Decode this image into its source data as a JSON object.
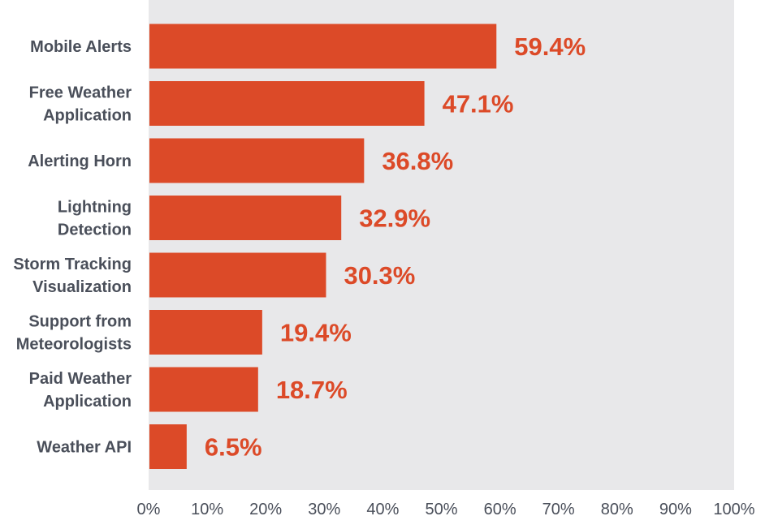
{
  "chart_data": {
    "type": "bar",
    "orientation": "horizontal",
    "categories": [
      [
        "Mobile Alerts"
      ],
      [
        "Free Weather",
        "Application"
      ],
      [
        "Alerting Horn"
      ],
      [
        "Lightning",
        "Detection"
      ],
      [
        "Storm Tracking",
        "Visualization"
      ],
      [
        "Support from",
        "Meteorologists"
      ],
      [
        "Paid Weather",
        "Application"
      ],
      [
        "Weather API"
      ]
    ],
    "values": [
      59.4,
      47.1,
      36.8,
      32.9,
      30.3,
      19.4,
      18.7,
      6.5
    ],
    "value_labels": [
      "59.4%",
      "47.1%",
      "36.8%",
      "32.9%",
      "30.3%",
      "19.4%",
      "18.7%",
      "6.5%"
    ],
    "xlim": [
      0,
      100
    ],
    "x_ticks": [
      0,
      10,
      20,
      30,
      40,
      50,
      60,
      70,
      80,
      90,
      100
    ],
    "x_tick_labels": [
      "0%",
      "10%",
      "20%",
      "30%",
      "40%",
      "50%",
      "60%",
      "70%",
      "80%",
      "90%",
      "100%"
    ],
    "title": "",
    "xlabel": "",
    "ylabel": "",
    "grid": false,
    "legend": "none",
    "colors": {
      "bar": "#dc4a28",
      "value_label": "#dc4a28",
      "plot_background": "#e8e8ea",
      "text": "#4a4f5a"
    }
  }
}
